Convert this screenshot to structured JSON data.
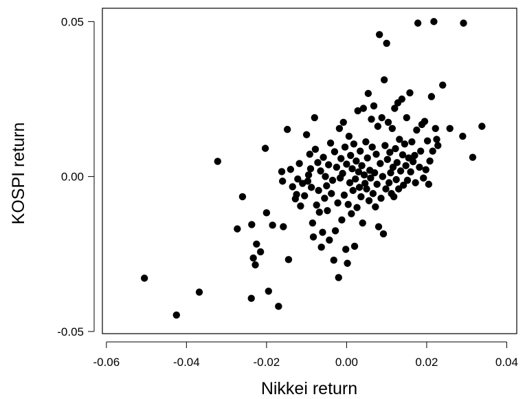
{
  "chart_data": {
    "type": "scatter",
    "xlabel": "Nikkei return",
    "ylabel": "KOSPI return",
    "xlim": [
      -0.061,
      0.0425
    ],
    "ylim": [
      -0.0507,
      0.0543
    ],
    "xticks": [
      -0.06,
      -0.04,
      -0.02,
      0.0,
      0.02,
      0.04
    ],
    "xtick_labels": [
      "-0.06",
      "-0.04",
      "-0.02",
      "0.00",
      "0.02",
      "0.04"
    ],
    "yticks": [
      -0.05,
      0.0,
      0.05
    ],
    "ytick_labels": [
      "-0.05",
      "0.00",
      "0.05"
    ],
    "grid": false,
    "marker_color": "#000000",
    "points": [
      [
        -0.0505,
        -0.0328
      ],
      [
        -0.0425,
        -0.0447
      ],
      [
        -0.0368,
        -0.0373
      ],
      [
        -0.0322,
        0.0049
      ],
      [
        -0.0273,
        -0.0169
      ],
      [
        -0.026,
        -0.0065
      ],
      [
        -0.0238,
        -0.0393
      ],
      [
        -0.0237,
        -0.0155
      ],
      [
        -0.0233,
        -0.0263
      ],
      [
        -0.0228,
        -0.0285
      ],
      [
        -0.0225,
        -0.0218
      ],
      [
        -0.0215,
        -0.0243
      ],
      [
        -0.0203,
        0.0091
      ],
      [
        -0.02,
        -0.0117
      ],
      [
        -0.0195,
        -0.037
      ],
      [
        -0.0185,
        -0.0157
      ],
      [
        -0.017,
        -0.0419
      ],
      [
        -0.0162,
        0.0016
      ],
      [
        -0.016,
        -0.0015
      ],
      [
        -0.0158,
        -0.0162
      ],
      [
        -0.0148,
        0.0152
      ],
      [
        -0.0145,
        -0.0268
      ],
      [
        -0.014,
        0.0023
      ],
      [
        -0.0135,
        -0.0033
      ],
      [
        -0.0128,
        -0.0072
      ],
      [
        -0.0125,
        -0.0058
      ],
      [
        -0.0122,
        -0.0008
      ],
      [
        -0.0118,
        0.0042
      ],
      [
        -0.0115,
        -0.0095
      ],
      [
        -0.011,
        -0.0022
      ],
      [
        -0.0105,
        -0.0062
      ],
      [
        -0.01,
        0.0135
      ],
      [
        -0.0097,
        -0.0015
      ],
      [
        -0.0095,
        0.0005
      ],
      [
        -0.0092,
        0.0072
      ],
      [
        -0.009,
        0.0025
      ],
      [
        -0.0088,
        -0.0035
      ],
      [
        -0.0085,
        -0.015
      ],
      [
        -0.0083,
        -0.0195
      ],
      [
        -0.008,
        0.019
      ],
      [
        -0.0078,
        0.0088
      ],
      [
        -0.0075,
        -0.0092
      ],
      [
        -0.0072,
        0.0045
      ],
      [
        -0.007,
        -0.0045
      ],
      [
        -0.0068,
        -0.0115
      ],
      [
        -0.0065,
        0.0018
      ],
      [
        -0.0063,
        -0.0228
      ],
      [
        -0.006,
        -0.018
      ],
      [
        -0.0058,
        0.0062
      ],
      [
        -0.0055,
        -0.007
      ],
      [
        -0.0053,
        0.0
      ],
      [
        -0.005,
        -0.003
      ],
      [
        -0.0048,
        -0.011
      ],
      [
        -0.0045,
        0.0038
      ],
      [
        -0.0043,
        -0.0205
      ],
      [
        -0.004,
        0.0108
      ],
      [
        -0.0038,
        -0.0055
      ],
      [
        -0.0035,
        -0.0012
      ],
      [
        -0.0032,
        -0.027
      ],
      [
        -0.003,
        0.008
      ],
      [
        -0.0028,
        -0.0175
      ],
      [
        -0.0025,
        0.003
      ],
      [
        -0.0022,
        -0.0085
      ],
      [
        -0.002,
        -0.0326
      ],
      [
        -0.0018,
        0.0155
      ],
      [
        -0.0016,
        -0.0005
      ],
      [
        -0.0014,
        0.0058
      ],
      [
        -0.0012,
        -0.014
      ],
      [
        -0.001,
        0.001
      ],
      [
        -0.0008,
        0.0175
      ],
      [
        -0.0006,
        -0.006
      ],
      [
        -0.0004,
        0.0095
      ],
      [
        -0.0002,
        -0.0235
      ],
      [
        0.0,
        0.004
      ],
      [
        0.0002,
        -0.028
      ],
      [
        0.0004,
        -0.009
      ],
      [
        0.0006,
        0.013
      ],
      [
        0.0008,
        -0.002
      ],
      [
        0.001,
        0.0068
      ],
      [
        0.0012,
        -0.012
      ],
      [
        0.0014,
        0.0025
      ],
      [
        0.0016,
        -0.0045
      ],
      [
        0.0018,
        0.0105
      ],
      [
        0.002,
        -0.0225
      ],
      [
        0.0022,
        -0.0008
      ],
      [
        0.0024,
        0.005
      ],
      [
        0.0026,
        -0.01
      ],
      [
        0.0028,
        0.0212
      ],
      [
        0.003,
        0.0015
      ],
      [
        0.0032,
        -0.0035
      ],
      [
        0.0034,
        0.0082
      ],
      [
        0.0036,
        -0.0065
      ],
      [
        0.0038,
        0.0035
      ],
      [
        0.004,
        -0.015
      ],
      [
        0.0042,
        0.022
      ],
      [
        0.0044,
        0.0005
      ],
      [
        0.0046,
        -0.0022
      ],
      [
        0.0048,
        0.0112
      ],
      [
        0.005,
        -0.004
      ],
      [
        0.0052,
        0.006
      ],
      [
        0.0054,
        0.0268
      ],
      [
        0.0056,
        -0.0078
      ],
      [
        0.0058,
        0.002
      ],
      [
        0.006,
        -0.0005
      ],
      [
        0.0062,
        0.0185
      ],
      [
        0.0064,
        0.0095
      ],
      [
        0.0066,
        -0.0055
      ],
      [
        0.0068,
        0.0228
      ],
      [
        0.007,
        0.0012
      ],
      [
        0.0072,
        -0.0098
      ],
      [
        0.0074,
        0.0072
      ],
      [
        0.0076,
        -0.0025
      ],
      [
        0.0078,
        0.0162
      ],
      [
        0.008,
        -0.0162
      ],
      [
        0.0082,
        0.0458
      ],
      [
        0.0084,
        0.0042
      ],
      [
        0.0086,
        -0.007
      ],
      [
        0.0088,
        0.019
      ],
      [
        0.009,
        0.0
      ],
      [
        0.0092,
        -0.0185
      ],
      [
        0.0094,
        0.0312
      ],
      [
        0.0096,
        0.01
      ],
      [
        0.0098,
        -0.004
      ],
      [
        0.01,
        0.043
      ],
      [
        0.0102,
        0.0055
      ],
      [
        0.0104,
        0.0175
      ],
      [
        0.0106,
        -0.002
      ],
      [
        0.0108,
        0.0078
      ],
      [
        0.011,
        0.0012
      ],
      [
        0.0112,
        -0.0055
      ],
      [
        0.0114,
        0.0155
      ],
      [
        0.0116,
        0.003
      ],
      [
        0.0118,
        -0.0065
      ],
      [
        0.012,
        0.022
      ],
      [
        0.0122,
        0.009
      ],
      [
        0.0124,
        -0.001
      ],
      [
        0.0126,
        0.0045
      ],
      [
        0.0128,
        0.0238
      ],
      [
        0.013,
        -0.004
      ],
      [
        0.0132,
        0.012
      ],
      [
        0.0135,
        0.0018
      ],
      [
        0.0138,
        0.025
      ],
      [
        0.014,
        0.007
      ],
      [
        0.0142,
        -0.0028
      ],
      [
        0.0145,
        0.0105
      ],
      [
        0.0148,
        0.0035
      ],
      [
        0.015,
        0.019
      ],
      [
        0.0152,
        -0.0012
      ],
      [
        0.0155,
        0.006
      ],
      [
        0.0158,
        0.027
      ],
      [
        0.016,
        0.0015
      ],
      [
        0.0163,
        0.0112
      ],
      [
        0.0166,
        0.0048
      ],
      [
        0.017,
        0.0068
      ],
      [
        0.0172,
        -0.002
      ],
      [
        0.0175,
        0.015
      ],
      [
        0.0178,
        0.0495
      ],
      [
        0.0182,
        0.003
      ],
      [
        0.0185,
        0.0082
      ],
      [
        0.0188,
        0.0168
      ],
      [
        0.0192,
        -0.0005
      ],
      [
        0.0195,
        0.0178
      ],
      [
        0.0198,
        0.0022
      ],
      [
        0.0202,
        0.0115
      ],
      [
        0.0205,
        -0.0025
      ],
      [
        0.0208,
        0.005
      ],
      [
        0.0212,
        0.0258
      ],
      [
        0.0215,
        0.0082
      ],
      [
        0.0218,
        0.05
      ],
      [
        0.0222,
        0.0155
      ],
      [
        0.0225,
        0.012
      ],
      [
        0.0228,
        0.01
      ],
      [
        0.024,
        0.0295
      ],
      [
        0.0258,
        0.0155
      ],
      [
        0.029,
        0.013
      ],
      [
        0.0292,
        0.0495
      ],
      [
        0.0315,
        0.0062
      ],
      [
        0.0338,
        0.0162
      ]
    ]
  }
}
